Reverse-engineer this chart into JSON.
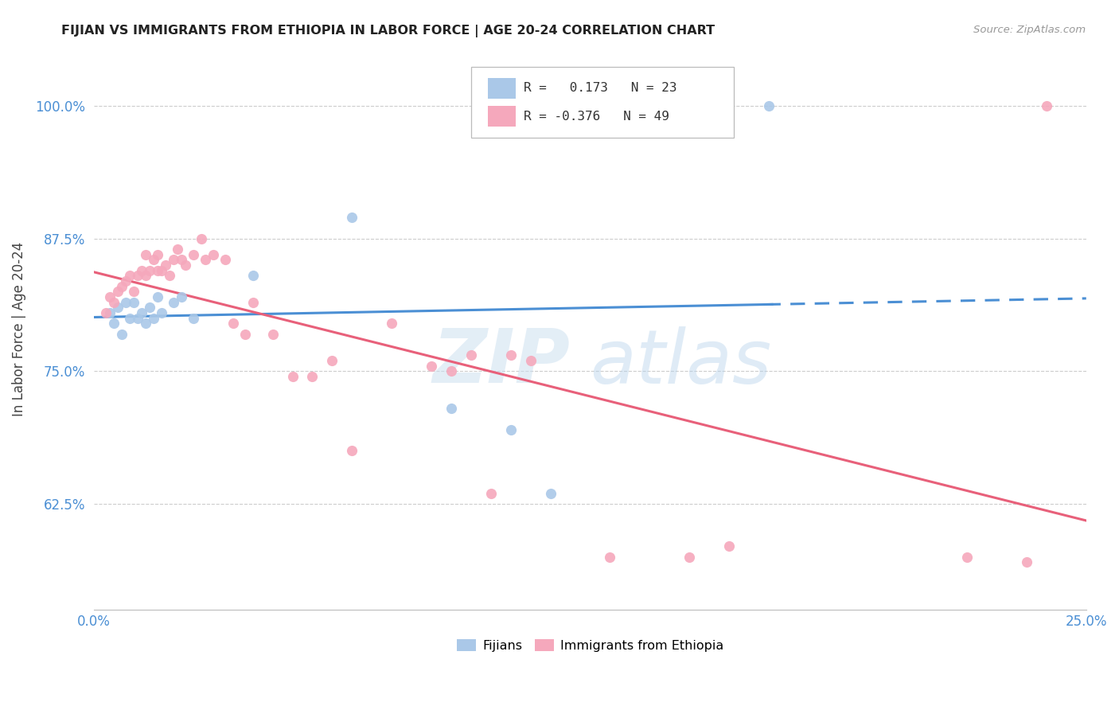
{
  "title": "FIJIAN VS IMMIGRANTS FROM ETHIOPIA IN LABOR FORCE | AGE 20-24 CORRELATION CHART",
  "source": "Source: ZipAtlas.com",
  "ylabel": "In Labor Force | Age 20-24",
  "xlim": [
    0.0,
    0.25
  ],
  "ylim": [
    0.525,
    1.055
  ],
  "yticks": [
    0.625,
    0.75,
    0.875,
    1.0
  ],
  "ytick_labels": [
    "62.5%",
    "75.0%",
    "87.5%",
    "100.0%"
  ],
  "xticks": [
    0.0,
    0.03125,
    0.0625,
    0.09375,
    0.125,
    0.15625,
    0.1875,
    0.21875,
    0.25
  ],
  "xtick_labels": [
    "0.0%",
    "",
    "",
    "",
    "",
    "",
    "",
    "",
    "25.0%"
  ],
  "fijian_color": "#aac8e8",
  "ethiopia_color": "#f5a8bc",
  "trend_blue": "#4b8fd4",
  "trend_pink": "#e8607a",
  "R_fijian": 0.173,
  "N_fijian": 23,
  "R_ethiopia": -0.376,
  "N_ethiopia": 49,
  "fijian_x": [
    0.004,
    0.005,
    0.006,
    0.007,
    0.008,
    0.009,
    0.01,
    0.011,
    0.012,
    0.013,
    0.014,
    0.015,
    0.016,
    0.017,
    0.02,
    0.022,
    0.025,
    0.04,
    0.065,
    0.09,
    0.105,
    0.115,
    0.17
  ],
  "fijian_y": [
    0.805,
    0.795,
    0.81,
    0.785,
    0.815,
    0.8,
    0.815,
    0.8,
    0.805,
    0.795,
    0.81,
    0.8,
    0.82,
    0.805,
    0.815,
    0.82,
    0.8,
    0.84,
    0.895,
    0.715,
    0.695,
    0.635,
    1.0
  ],
  "ethiopia_x": [
    0.003,
    0.004,
    0.005,
    0.006,
    0.007,
    0.008,
    0.009,
    0.01,
    0.011,
    0.012,
    0.013,
    0.013,
    0.014,
    0.015,
    0.016,
    0.016,
    0.017,
    0.018,
    0.019,
    0.02,
    0.021,
    0.022,
    0.023,
    0.025,
    0.027,
    0.028,
    0.03,
    0.033,
    0.035,
    0.038,
    0.04,
    0.045,
    0.05,
    0.055,
    0.06,
    0.065,
    0.075,
    0.085,
    0.09,
    0.095,
    0.1,
    0.105,
    0.11,
    0.13,
    0.15,
    0.16,
    0.22,
    0.235,
    0.24
  ],
  "ethiopia_y": [
    0.805,
    0.82,
    0.815,
    0.825,
    0.83,
    0.835,
    0.84,
    0.825,
    0.84,
    0.845,
    0.84,
    0.86,
    0.845,
    0.855,
    0.845,
    0.86,
    0.845,
    0.85,
    0.84,
    0.855,
    0.865,
    0.855,
    0.85,
    0.86,
    0.875,
    0.855,
    0.86,
    0.855,
    0.795,
    0.785,
    0.815,
    0.785,
    0.745,
    0.745,
    0.76,
    0.675,
    0.795,
    0.755,
    0.75,
    0.765,
    0.635,
    0.765,
    0.76,
    0.575,
    0.575,
    0.585,
    0.575,
    0.57,
    1.0
  ],
  "watermark_zip": "ZIP",
  "watermark_atlas": "atlas",
  "background_color": "#ffffff"
}
